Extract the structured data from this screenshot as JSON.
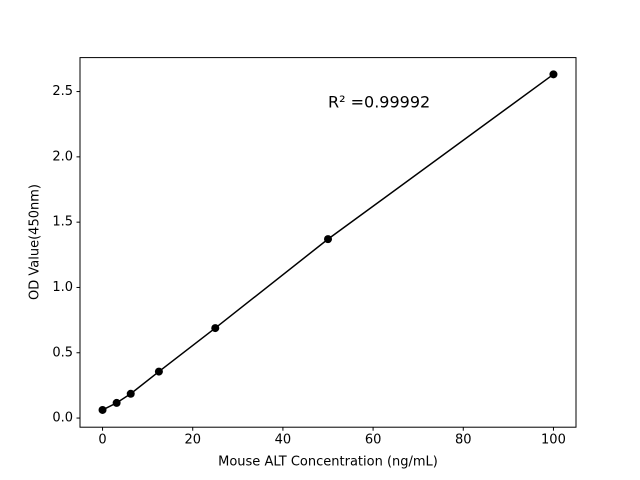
{
  "chart_data": {
    "type": "line",
    "x_label": "Mouse ALT Concentration (ng/mL)",
    "y_label": "OD Value(450nm)",
    "annotation": "R² =0.99992",
    "x": [
      0,
      3.125,
      6.25,
      12.5,
      25,
      50,
      100
    ],
    "series": [
      {
        "color": "#000000",
        "values": [
          0.062,
          0.116,
          0.186,
          0.356,
          0.689,
          1.37,
          2.632
        ]
      }
    ],
    "xlim": [
      -5,
      105
    ],
    "ylim": [
      -0.07,
      2.76
    ],
    "xticks": [
      0,
      20,
      40,
      60,
      80,
      100
    ],
    "yticks": [
      {
        "value": 0,
        "label": "0.0"
      },
      0.5,
      {
        "value": 1,
        "label": "1.0"
      },
      1.5,
      {
        "value": 2,
        "label": "2.0"
      },
      2.5
    ],
    "grid": false
  }
}
